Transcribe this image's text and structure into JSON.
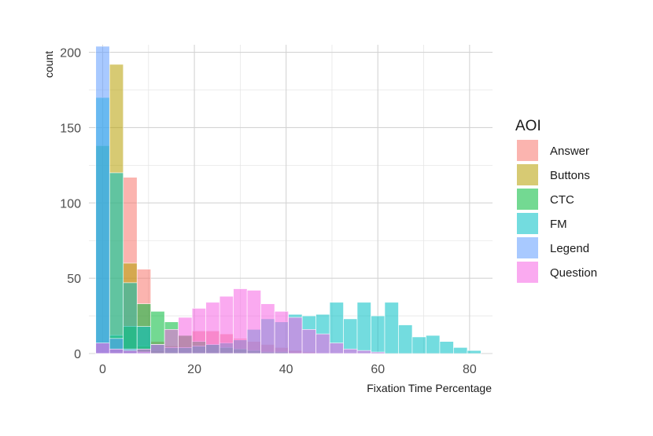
{
  "chart_data": {
    "type": "bar",
    "subtype": "overlapping histogram",
    "title": "",
    "xlabel": "Fixation Time Percentage",
    "ylabel": "count",
    "xlim": [
      -3,
      85
    ],
    "ylim": [
      0,
      205
    ],
    "x_ticks": [
      0,
      20,
      40,
      60,
      80
    ],
    "y_ticks": [
      0,
      50,
      100,
      150,
      200
    ],
    "grid": true,
    "legend_title": "AOI",
    "legend_position": "right",
    "bin_centers": [
      0,
      3,
      6,
      9,
      12,
      15,
      18,
      21,
      24,
      27,
      30,
      33,
      36,
      39,
      42,
      45,
      48,
      51,
      54,
      57,
      60,
      63,
      66,
      69,
      72,
      75,
      78,
      81
    ],
    "series": [
      {
        "name": "Answer",
        "color": "#F8766D",
        "values": [
          0,
          0,
          117,
          56,
          8,
          5,
          12,
          15,
          15,
          13,
          10,
          8,
          6,
          4,
          2,
          1,
          0,
          0,
          0,
          0,
          0,
          0,
          0,
          0,
          0,
          0,
          0,
          0
        ]
      },
      {
        "name": "Buttons",
        "color": "#B79F00",
        "values": [
          0,
          192,
          60,
          5,
          2,
          1,
          0,
          0,
          0,
          0,
          0,
          0,
          0,
          0,
          0,
          0,
          0,
          0,
          0,
          0,
          0,
          0,
          0,
          0,
          0,
          0,
          0,
          0
        ]
      },
      {
        "name": "CTC",
        "color": "#00BA38",
        "values": [
          138,
          12,
          18,
          33,
          28,
          21,
          12,
          8,
          6,
          4,
          3,
          2,
          1,
          1,
          0,
          0,
          0,
          0,
          0,
          0,
          0,
          0,
          0,
          0,
          0,
          0,
          0,
          0
        ]
      },
      {
        "name": "FM",
        "color": "#00BFC4",
        "values": [
          170,
          120,
          47,
          18,
          6,
          4,
          4,
          5,
          6,
          7,
          9,
          16,
          23,
          21,
          26,
          25,
          26,
          34,
          23,
          34,
          25,
          34,
          19,
          11,
          12,
          8,
          4,
          2
        ]
      },
      {
        "name": "Legend",
        "color": "#619CFF",
        "values": [
          204,
          10,
          3,
          1,
          0,
          0,
          0,
          0,
          0,
          0,
          0,
          0,
          0,
          0,
          0,
          0,
          0,
          0,
          0,
          0,
          0,
          0,
          0,
          0,
          0,
          0,
          0,
          0
        ]
      },
      {
        "name": "Question",
        "color": "#F564E3",
        "values": [
          7,
          3,
          2,
          3,
          6,
          16,
          24,
          30,
          34,
          38,
          43,
          42,
          33,
          28,
          24,
          16,
          13,
          7,
          3,
          2,
          1,
          0,
          0,
          0,
          0,
          0,
          0,
          0
        ]
      }
    ]
  }
}
